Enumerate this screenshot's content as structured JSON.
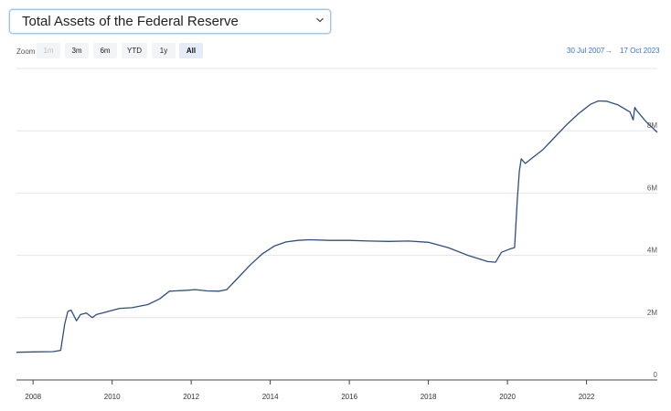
{
  "selector": {
    "label": "Total Assets of the Federal Reserve",
    "icon": "chevron-down-icon"
  },
  "zoom": {
    "label": "Zoom",
    "buttons": [
      {
        "label": "1m",
        "state": "disabled"
      },
      {
        "label": "3m",
        "state": "normal"
      },
      {
        "label": "6m",
        "state": "normal"
      },
      {
        "label": "YTD",
        "state": "normal"
      },
      {
        "label": "1y",
        "state": "normal"
      },
      {
        "label": "All",
        "state": "selected"
      }
    ]
  },
  "range": {
    "from": "30 Jul 2007",
    "arrow": "→",
    "to": "17 Oct 2023"
  },
  "colors": {
    "line": "#2f4f7f",
    "grid": "#e6e6e6",
    "accent": "#3a6fe0"
  },
  "chart_data": {
    "type": "line",
    "title": "",
    "xlabel": "",
    "ylabel": "",
    "xlim": [
      2007.58,
      2023.79
    ],
    "ylim": [
      0,
      10000000
    ],
    "y_ticks": [
      {
        "value": 0,
        "label": "0"
      },
      {
        "value": 2000000,
        "label": "2M"
      },
      {
        "value": 4000000,
        "label": "4M"
      },
      {
        "value": 6000000,
        "label": "6M"
      },
      {
        "value": 8000000,
        "label": "8M"
      }
    ],
    "x_ticks": [
      {
        "value": 2008,
        "label": "2008"
      },
      {
        "value": 2010,
        "label": "2010"
      },
      {
        "value": 2012,
        "label": "2012"
      },
      {
        "value": 2014,
        "label": "2014"
      },
      {
        "value": 2016,
        "label": "2016"
      },
      {
        "value": 2018,
        "label": "2018"
      },
      {
        "value": 2020,
        "label": "2020"
      },
      {
        "value": 2022,
        "label": "2022"
      }
    ],
    "series": [
      {
        "x": [
          2007.58,
          2008.0,
          2008.5,
          2008.7,
          2008.8,
          2008.88,
          2008.96,
          2009.1,
          2009.2,
          2009.35,
          2009.5,
          2009.6,
          2009.75,
          2009.9,
          2010.2,
          2010.5,
          2010.9,
          2011.2,
          2011.45,
          2011.6,
          2011.9,
          2012.1,
          2012.4,
          2012.7,
          2012.9,
          2013.2,
          2013.5,
          2013.8,
          2014.1,
          2014.4,
          2014.7,
          2015.0,
          2015.5,
          2016.0,
          2016.5,
          2017.0,
          2017.5,
          2018.0,
          2018.5,
          2019.0,
          2019.5,
          2019.7,
          2019.85,
          2020.05,
          2020.18,
          2020.25,
          2020.3,
          2020.35,
          2020.45,
          2020.6,
          2020.9,
          2021.2,
          2021.5,
          2021.8,
          2022.1,
          2022.3,
          2022.5,
          2022.8,
          2023.1,
          2023.18,
          2023.22,
          2023.27,
          2023.5,
          2023.79
        ],
        "y": [
          890000,
          900000,
          910000,
          950000,
          1800000,
          2200000,
          2240000,
          1900000,
          2100000,
          2150000,
          2000000,
          2100000,
          2150000,
          2200000,
          2300000,
          2320000,
          2420000,
          2600000,
          2850000,
          2860000,
          2880000,
          2900000,
          2860000,
          2850000,
          2900000,
          3300000,
          3700000,
          4050000,
          4300000,
          4430000,
          4480000,
          4500000,
          4480000,
          4480000,
          4460000,
          4450000,
          4460000,
          4420000,
          4250000,
          4000000,
          3800000,
          3780000,
          4100000,
          4200000,
          4250000,
          5800000,
          6700000,
          7100000,
          6950000,
          7100000,
          7400000,
          7800000,
          8200000,
          8550000,
          8850000,
          8960000,
          8950000,
          8830000,
          8600000,
          8350000,
          8750000,
          8650000,
          8300000,
          7950000
        ]
      }
    ]
  }
}
